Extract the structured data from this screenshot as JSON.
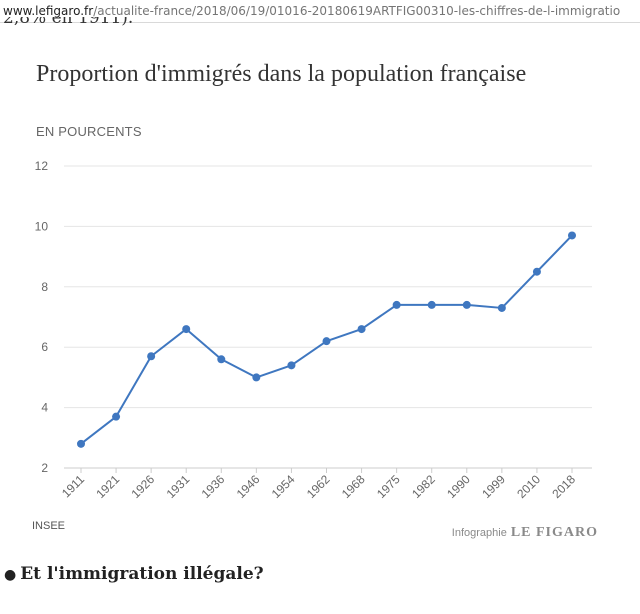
{
  "browser": {
    "url_domain": "www.lefigaro.fr",
    "url_path": "/actualite-france/2018/06/19/01016-20180619ARTFIG00310-les-chiffres-de-l-immigratio"
  },
  "article": {
    "cut_off_text": "2,8% en 1911).",
    "next_heading": "Et l'immigration illégale?",
    "bullet": "●"
  },
  "footer": {
    "source": "INSEE",
    "credit_prefix": "Infographie",
    "credit_brand": "LE FIGARO"
  },
  "colors": {
    "series": "#3f77c0",
    "grid": "#e5e5e5",
    "axis": "#cccccc"
  },
  "chart_data": {
    "type": "line",
    "title": "Proportion d'immigrés dans la population française",
    "subtitle": "EN POURCENTS",
    "categories": [
      "1911",
      "1921",
      "1926",
      "1931",
      "1936",
      "1946",
      "1954",
      "1962",
      "1968",
      "1975",
      "1982",
      "1990",
      "1999",
      "2010",
      "2018"
    ],
    "series": [
      {
        "name": "Proportion d'immigrés",
        "values": [
          2.8,
          3.7,
          5.7,
          6.6,
          5.6,
          5.0,
          5.4,
          6.2,
          6.6,
          7.4,
          7.4,
          7.4,
          7.3,
          8.5,
          9.7
        ]
      }
    ],
    "yticks": [
      2,
      4,
      6,
      8,
      10,
      12
    ],
    "ylim": [
      2,
      12
    ],
    "xlabel": "",
    "ylabel": "",
    "grid": true
  }
}
